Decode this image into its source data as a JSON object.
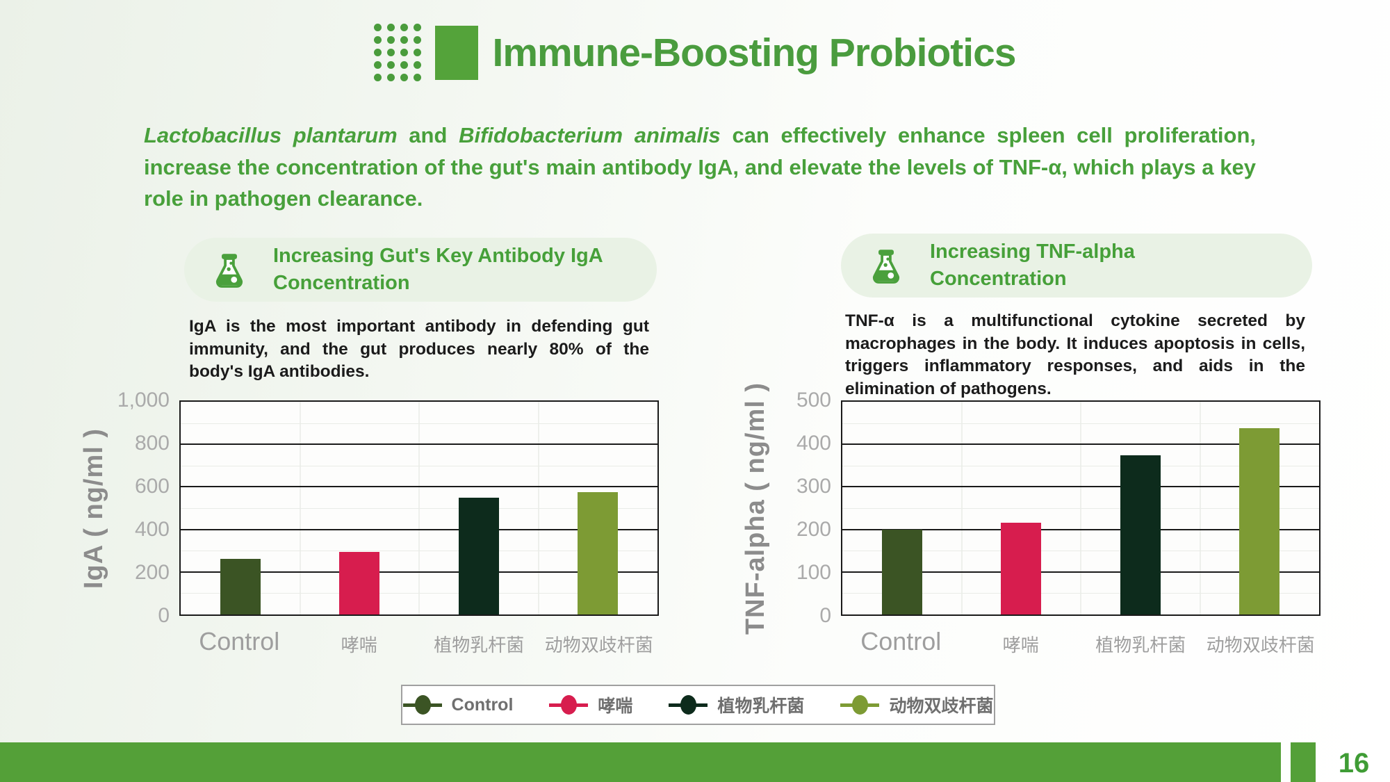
{
  "title": "Immune-Boosting Probiotics",
  "intro": {
    "species1": "Lactobacillus plantarum",
    "mid": " and ",
    "species2": "Bifidobacterium animalis",
    "rest": " can effectively enhance spleen cell proliferation, increase the concentration of the gut's main antibody IgA, and elevate the levels of TNF-α, which plays a key role in pathogen clearance."
  },
  "sections": [
    {
      "heading": "Increasing Gut's Key Antibody IgA Concentration",
      "description": "IgA is the most important antibody in defending gut immunity, and the gut produces nearly 80% of the body's IgA antibodies."
    },
    {
      "heading": "Increasing TNF-alpha Concentration",
      "description": "TNF-α is a multifunctional cytokine secreted by macrophages in the body. It induces apoptosis in cells, triggers inflammatory responses, and aids in the elimination of pathogens."
    }
  ],
  "chart_data": [
    {
      "type": "bar",
      "categories": [
        "Control",
        "哮喘",
        "植物乳杆菌",
        "动物双歧杆菌"
      ],
      "values": [
        260,
        295,
        550,
        575
      ],
      "ylabel": "IgA ( ng/ml )",
      "xlabel": "",
      "title": "",
      "ylim": [
        0,
        1000
      ],
      "ytick_step": 200,
      "ytick_labels": [
        "0",
        "200",
        "400",
        "600",
        "800",
        "1,000"
      ],
      "bar_colors": [
        "#3b5424",
        "#d71d4e",
        "#0d2b1c",
        "#7d9b34"
      ],
      "grid": true,
      "legend_position": "bottom-shared"
    },
    {
      "type": "bar",
      "categories": [
        "Control",
        "哮喘",
        "植物乳杆菌",
        "动物双歧杆菌"
      ],
      "values": [
        200,
        215,
        375,
        438
      ],
      "ylabel": "TNF-alpha ( ng/ml )",
      "xlabel": "",
      "title": "",
      "ylim": [
        0,
        500
      ],
      "ytick_step": 100,
      "ytick_labels": [
        "0",
        "100",
        "200",
        "300",
        "400",
        "500"
      ],
      "bar_colors": [
        "#3b5424",
        "#d71d4e",
        "#0d2b1c",
        "#7d9b34"
      ],
      "grid": true,
      "legend_position": "bottom-shared"
    }
  ],
  "legend": {
    "items": [
      {
        "label": "Control",
        "color": "#3b5424"
      },
      {
        "label": "哮喘",
        "color": "#d71d4e"
      },
      {
        "label": "植物乳杆菌",
        "color": "#0d2b1c"
      },
      {
        "label": "动物双歧杆菌",
        "color": "#7d9b34"
      }
    ]
  },
  "footer": {
    "page_number": "16"
  },
  "icons": {
    "title_dot_grid": "dot-grid-decoration",
    "title_square": "green-square-decoration",
    "section_icon": "flask-icon"
  },
  "colors": {
    "title_green": "#4a9c3e",
    "text_green": "#48a03b",
    "card_bg": "#e9f2e5",
    "description_black": "#1b1b1b",
    "axis_gray": "#aaaaaa",
    "footer_green": "#54a038"
  }
}
